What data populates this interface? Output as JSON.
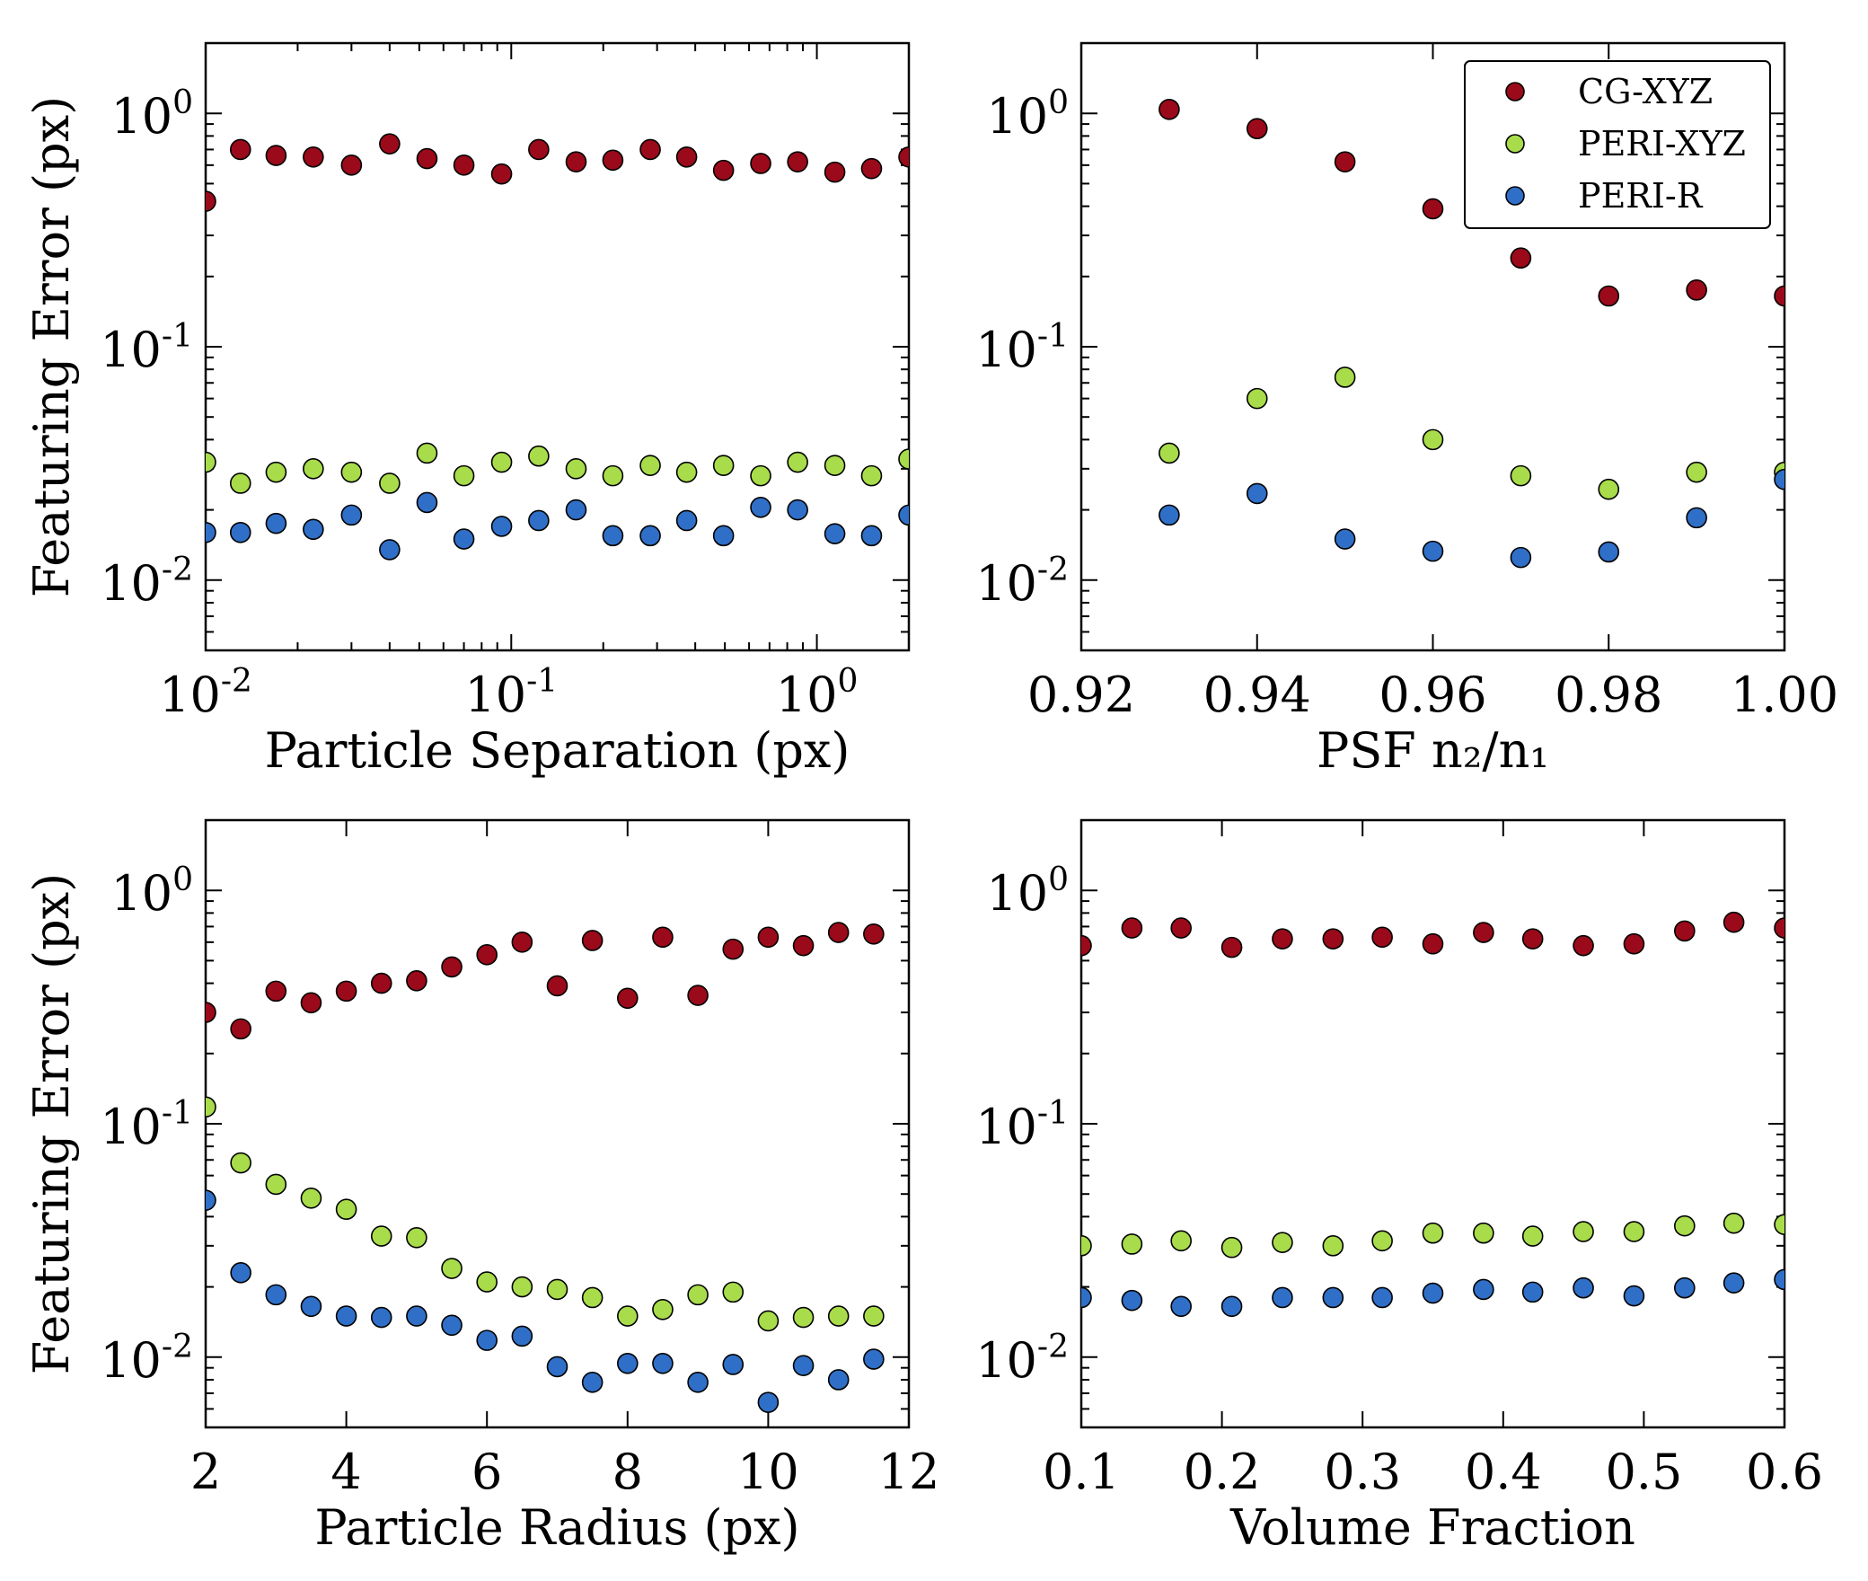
{
  "figure": {
    "title": "",
    "shared_ylabel": "Featuring Error (px)",
    "series_styles": [
      {
        "name": "CG-XYZ",
        "color": "#9b0a1a"
      },
      {
        "name": "PERI-XYZ",
        "color": "#a8dc4a"
      },
      {
        "name": "PERI-R",
        "color": "#2f6fc7"
      }
    ],
    "legend": {
      "entries": [
        "CG-XYZ",
        "PERI-XYZ",
        "PERI-R"
      ],
      "location": "upper-right",
      "panel": 1
    }
  },
  "chart_data": [
    {
      "type": "scatter",
      "title": "",
      "xlabel": "Particle Separation (px)",
      "ylabel": "Featuring Error (px)",
      "xscale": "log",
      "yscale": "log",
      "xlim": [
        0.01,
        2.0
      ],
      "ylim": [
        0.005,
        2.0
      ],
      "xticks": [
        {
          "value": 0.01,
          "base": "10",
          "exp": "-2"
        },
        {
          "value": 0.1,
          "base": "10",
          "exp": "-1"
        },
        {
          "value": 1,
          "base": "10",
          "exp": "0"
        }
      ],
      "yticks": [
        {
          "value": 0.01,
          "base": "10",
          "exp": "-2"
        },
        {
          "value": 0.1,
          "base": "10",
          "exp": "-1"
        },
        {
          "value": 1,
          "base": "10",
          "exp": "0"
        }
      ],
      "x": [
        0.01,
        0.013,
        0.017,
        0.0225,
        0.03,
        0.04,
        0.053,
        0.07,
        0.093,
        0.123,
        0.163,
        0.215,
        0.285,
        0.375,
        0.495,
        0.655,
        0.865,
        1.145,
        1.51,
        2.0
      ],
      "series": [
        {
          "name": "CG-XYZ",
          "values": [
            0.42,
            0.7,
            0.66,
            0.65,
            0.6,
            0.74,
            0.64,
            0.6,
            0.55,
            0.7,
            0.62,
            0.63,
            0.7,
            0.65,
            0.57,
            0.61,
            0.62,
            0.56,
            0.58,
            0.65
          ]
        },
        {
          "name": "PERI-XYZ",
          "values": [
            0.032,
            0.026,
            0.029,
            0.03,
            0.029,
            0.026,
            0.035,
            0.028,
            0.032,
            0.034,
            0.03,
            0.028,
            0.031,
            0.029,
            0.031,
            0.028,
            0.032,
            0.031,
            0.028,
            0.033
          ]
        },
        {
          "name": "PERI-R",
          "values": [
            0.016,
            0.016,
            0.0175,
            0.0165,
            0.019,
            0.0135,
            0.0215,
            0.015,
            0.017,
            0.018,
            0.02,
            0.0155,
            0.0155,
            0.018,
            0.0155,
            0.0205,
            0.02,
            0.0158,
            0.0155,
            0.019
          ]
        }
      ]
    },
    {
      "type": "scatter",
      "title": "",
      "xlabel": "PSF n₂/n₁",
      "ylabel": "",
      "xscale": "linear",
      "yscale": "log",
      "xlim": [
        0.92,
        1.0
      ],
      "ylim": [
        0.005,
        2.0
      ],
      "xticks": [
        {
          "value": 0.92,
          "label": "0.92"
        },
        {
          "value": 0.94,
          "label": "0.94"
        },
        {
          "value": 0.96,
          "label": "0.96"
        },
        {
          "value": 0.98,
          "label": "0.98"
        },
        {
          "value": 1.0,
          "label": "1.00"
        }
      ],
      "yticks": [
        {
          "value": 0.01,
          "base": "10",
          "exp": "-2"
        },
        {
          "value": 0.1,
          "base": "10",
          "exp": "-1"
        },
        {
          "value": 1,
          "base": "10",
          "exp": "0"
        }
      ],
      "x": [
        0.93,
        0.94,
        0.95,
        0.96,
        0.97,
        0.98,
        0.99,
        1.0
      ],
      "series": [
        {
          "name": "CG-XYZ",
          "values": [
            1.04,
            0.86,
            0.62,
            0.39,
            0.24,
            0.165,
            0.175,
            0.165
          ]
        },
        {
          "name": "PERI-XYZ",
          "values": [
            0.035,
            0.06,
            0.074,
            0.04,
            0.028,
            0.0245,
            0.029,
            0.029
          ]
        },
        {
          "name": "PERI-R",
          "values": [
            0.019,
            0.0235,
            0.015,
            0.0133,
            0.0125,
            0.0132,
            0.0185,
            0.027
          ]
        }
      ],
      "legend": [
        "CG-XYZ",
        "PERI-XYZ",
        "PERI-R"
      ]
    },
    {
      "type": "scatter",
      "title": "",
      "xlabel": "Particle Radius (px)",
      "ylabel": "Featuring Error (px)",
      "xscale": "linear",
      "yscale": "log",
      "xlim": [
        2,
        12
      ],
      "ylim": [
        0.005,
        2.0
      ],
      "xticks": [
        {
          "value": 2,
          "label": "2"
        },
        {
          "value": 4,
          "label": "4"
        },
        {
          "value": 6,
          "label": "6"
        },
        {
          "value": 8,
          "label": "8"
        },
        {
          "value": 10,
          "label": "10"
        },
        {
          "value": 12,
          "label": "12"
        }
      ],
      "yticks": [
        {
          "value": 0.01,
          "base": "10",
          "exp": "-2"
        },
        {
          "value": 0.1,
          "base": "10",
          "exp": "-1"
        },
        {
          "value": 1,
          "base": "10",
          "exp": "0"
        }
      ],
      "x": [
        2.0,
        2.5,
        3.0,
        3.5,
        4.0,
        4.5,
        5.0,
        5.5,
        6.0,
        6.5,
        7.0,
        7.5,
        8.0,
        8.5,
        9.0,
        9.5,
        10.0,
        10.5,
        11.0,
        11.5
      ],
      "series": [
        {
          "name": "CG-XYZ",
          "values": [
            0.3,
            0.255,
            0.37,
            0.33,
            0.37,
            0.4,
            0.41,
            0.47,
            0.53,
            0.6,
            0.39,
            0.61,
            0.345,
            0.63,
            0.355,
            0.56,
            0.63,
            0.58,
            0.66,
            0.65
          ]
        },
        {
          "name": "PERI-XYZ",
          "values": [
            0.118,
            0.068,
            0.055,
            0.048,
            0.043,
            0.033,
            0.0325,
            0.024,
            0.021,
            0.02,
            0.0195,
            0.018,
            0.015,
            0.016,
            0.0185,
            0.019,
            0.0143,
            0.0148,
            0.015,
            0.015
          ]
        },
        {
          "name": "PERI-R",
          "values": [
            0.047,
            0.023,
            0.0185,
            0.0165,
            0.015,
            0.0148,
            0.015,
            0.0137,
            0.0118,
            0.0123,
            0.0091,
            0.0078,
            0.0094,
            0.0094,
            0.0078,
            0.0093,
            0.0064,
            0.0092,
            0.008,
            0.0098
          ]
        }
      ]
    },
    {
      "type": "scatter",
      "title": "",
      "xlabel": "Volume Fraction",
      "ylabel": "",
      "xscale": "linear",
      "yscale": "log",
      "xlim": [
        0.1,
        0.6
      ],
      "ylim": [
        0.005,
        2.0
      ],
      "xticks": [
        {
          "value": 0.1,
          "label": "0.1"
        },
        {
          "value": 0.2,
          "label": "0.2"
        },
        {
          "value": 0.3,
          "label": "0.3"
        },
        {
          "value": 0.4,
          "label": "0.4"
        },
        {
          "value": 0.5,
          "label": "0.5"
        },
        {
          "value": 0.6,
          "label": "0.6"
        }
      ],
      "yticks": [
        {
          "value": 0.01,
          "base": "10",
          "exp": "-2"
        },
        {
          "value": 0.1,
          "base": "10",
          "exp": "-1"
        },
        {
          "value": 1,
          "base": "10",
          "exp": "0"
        }
      ],
      "x": [
        0.1,
        0.136,
        0.171,
        0.207,
        0.243,
        0.279,
        0.314,
        0.35,
        0.386,
        0.421,
        0.457,
        0.493,
        0.529,
        0.564,
        0.6
      ],
      "series": [
        {
          "name": "CG-XYZ",
          "values": [
            0.58,
            0.69,
            0.69,
            0.57,
            0.62,
            0.62,
            0.63,
            0.59,
            0.66,
            0.62,
            0.58,
            0.59,
            0.67,
            0.73,
            0.69
          ]
        },
        {
          "name": "PERI-XYZ",
          "values": [
            0.03,
            0.0305,
            0.0315,
            0.0295,
            0.031,
            0.03,
            0.0315,
            0.034,
            0.034,
            0.033,
            0.0345,
            0.0345,
            0.0365,
            0.0375,
            0.037
          ]
        },
        {
          "name": "PERI-R",
          "values": [
            0.018,
            0.0175,
            0.0165,
            0.0165,
            0.018,
            0.018,
            0.018,
            0.0188,
            0.0195,
            0.019,
            0.0198,
            0.0183,
            0.0198,
            0.0208,
            0.0215
          ]
        }
      ]
    }
  ]
}
